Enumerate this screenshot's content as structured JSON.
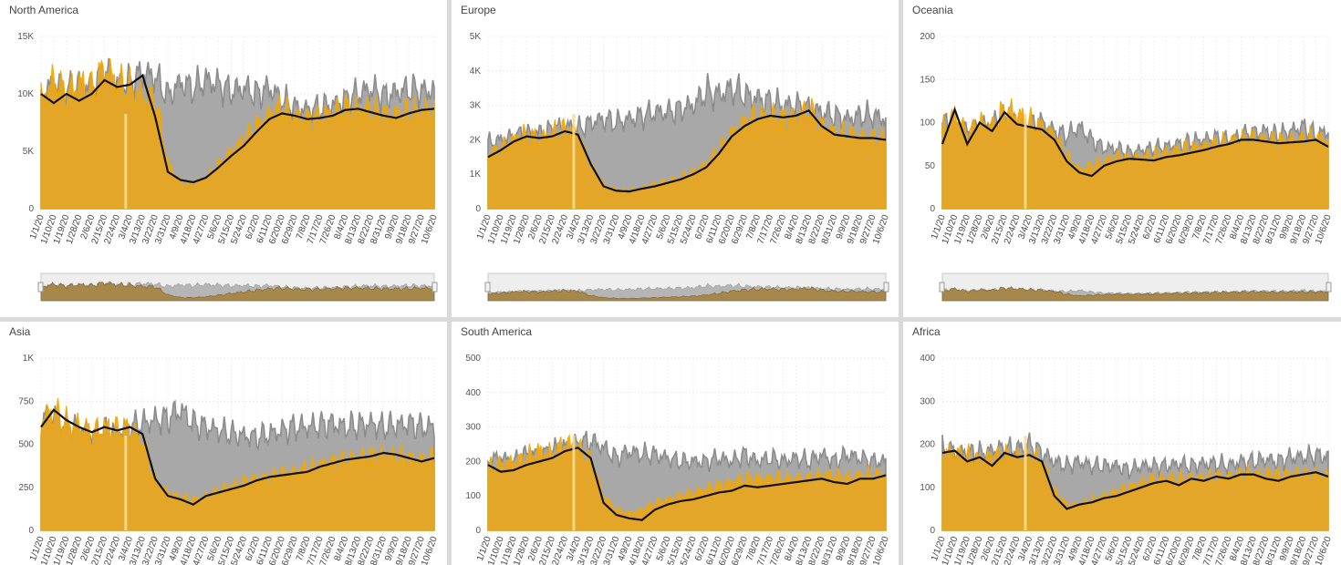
{
  "colors": {
    "this_year": "#e8a623",
    "last_year": "#8c8c8c",
    "rolling_avg": "#111111",
    "marker": "#f6dd8e",
    "background": "#ffffff"
  },
  "x_tick_labels": [
    "1/1/20",
    "1/10/20",
    "1/19/20",
    "1/28/20",
    "2/6/20",
    "2/15/20",
    "2/24/20",
    "3/4/20",
    "3/13/20",
    "3/22/20",
    "3/31/20",
    "4/9/20",
    "4/18/20",
    "4/27/20",
    "5/6/20",
    "5/15/20",
    "5/24/20",
    "6/2/20",
    "6/11/20",
    "6/20/20",
    "6/29/20",
    "7/8/20",
    "7/17/20",
    "7/26/20",
    "8/4/20",
    "8/13/20",
    "8/22/20",
    "8/31/20",
    "9/9/20",
    "9/18/20",
    "9/27/20",
    "10/6/20"
  ],
  "chart_data": [
    {
      "type": "area",
      "title": "North America",
      "y_ticks": [
        "0",
        "5K",
        "10K",
        "15K"
      ],
      "ylim": [
        0,
        15000
      ],
      "has_navigator": true,
      "x_range": [
        "1/1/20",
        "10/11/20"
      ],
      "series": [
        {
          "values": [
            9500,
            11200,
            10000,
            11000,
            10400,
            12300,
            11000,
            10500,
            9800,
            9600,
            4000,
            2200,
            2100,
            2700,
            3800,
            5000,
            6100,
            7200,
            8200,
            8700,
            8000,
            7800,
            8000,
            8300,
            8700,
            8700,
            8500,
            8300,
            8200,
            8400,
            8600,
            8600
          ]
        },
        {
          "values": [
            9600,
            11000,
            10200,
            10800,
            10500,
            12000,
            10800,
            11000,
            11800,
            11500,
            9800,
            11000,
            10500,
            11200,
            10800,
            10200,
            10500,
            10000,
            10500,
            9500,
            8800,
            8600,
            8800,
            9000,
            9500,
            10000,
            10400,
            9800,
            10100,
            10400,
            10200,
            10300
          ]
        },
        {
          "values": [
            10000,
            9200,
            10000,
            9400,
            10000,
            11200,
            10600,
            10800,
            11600,
            8000,
            3200,
            2500,
            2300,
            2700,
            3600,
            4600,
            5500,
            6700,
            7800,
            8300,
            8100,
            7800,
            7900,
            8100,
            8600,
            8700,
            8400,
            8100,
            7900,
            8300,
            8600,
            8700
          ]
        }
      ]
    },
    {
      "type": "area",
      "title": "Europe",
      "y_ticks": [
        "0",
        "1K",
        "2K",
        "3K",
        "4K",
        "5K"
      ],
      "ylim": [
        0,
        5000
      ],
      "has_navigator": true,
      "x_range": [
        "1/1/20",
        "10/11/20"
      ],
      "series": [
        {
          "values": [
            1600,
            1750,
            2000,
            2150,
            2000,
            2200,
            2300,
            2200,
            1200,
            700,
            550,
            520,
            600,
            700,
            800,
            900,
            1050,
            1300,
            1700,
            2200,
            2500,
            2650,
            2700,
            2600,
            2650,
            2900,
            2400,
            2200,
            2150,
            2100,
            2050,
            2000
          ]
        },
        {
          "values": [
            1900,
            2000,
            2100,
            2200,
            2200,
            2300,
            2400,
            2300,
            2500,
            2600,
            2500,
            2600,
            2700,
            2800,
            2800,
            2900,
            3000,
            3400,
            3300,
            3500,
            3300,
            3200,
            3100,
            3000,
            3000,
            2900,
            2800,
            2700,
            2600,
            2700,
            2700,
            2600
          ]
        },
        {
          "values": [
            1500,
            1700,
            1950,
            2100,
            2050,
            2100,
            2250,
            2150,
            1300,
            650,
            520,
            500,
            580,
            650,
            750,
            850,
            1000,
            1200,
            1600,
            2100,
            2400,
            2600,
            2700,
            2650,
            2700,
            2850,
            2400,
            2150,
            2100,
            2050,
            2050,
            2000
          ]
        }
      ]
    },
    {
      "type": "area",
      "title": "Oceania",
      "y_ticks": [
        "0",
        "50",
        "100",
        "150",
        "200"
      ],
      "ylim": [
        0,
        200
      ],
      "has_navigator": true,
      "x_range": [
        "1/1/20",
        "10/11/20"
      ],
      "series": [
        {
          "values": [
            90,
            110,
            85,
            100,
            95,
            115,
            110,
            100,
            95,
            85,
            60,
            45,
            50,
            55,
            60,
            58,
            60,
            62,
            65,
            68,
            70,
            72,
            75,
            78,
            80,
            82,
            80,
            78,
            80,
            80,
            82,
            80
          ]
        },
        {
          "values": [
            100,
            95,
            90,
            95,
            100,
            105,
            100,
            95,
            100,
            90,
            85,
            95,
            80,
            70,
            70,
            65,
            68,
            70,
            72,
            75,
            78,
            80,
            82,
            80,
            85,
            88,
            90,
            85,
            90,
            95,
            85,
            90
          ]
        },
        {
          "values": [
            75,
            115,
            75,
            100,
            90,
            112,
            98,
            95,
            92,
            80,
            55,
            42,
            38,
            50,
            55,
            58,
            57,
            56,
            60,
            62,
            65,
            68,
            72,
            75,
            80,
            80,
            78,
            76,
            77,
            78,
            80,
            72
          ]
        }
      ]
    },
    {
      "type": "area",
      "title": "Asia",
      "y_ticks": [
        "0",
        "250",
        "500",
        "750",
        "1K"
      ],
      "ylim": [
        0,
        1000
      ],
      "has_navigator": false,
      "x_range": [
        "1/1/20",
        "10/11/20"
      ],
      "series": [
        {
          "values": [
            650,
            680,
            620,
            600,
            560,
            600,
            580,
            590,
            520,
            280,
            220,
            190,
            180,
            200,
            230,
            260,
            280,
            300,
            310,
            330,
            340,
            360,
            380,
            400,
            410,
            420,
            430,
            440,
            430,
            420,
            410,
            420
          ]
        },
        {
          "values": [
            640,
            660,
            600,
            590,
            560,
            580,
            570,
            600,
            620,
            640,
            650,
            700,
            620,
            600,
            580,
            560,
            550,
            540,
            560,
            580,
            600,
            600,
            610,
            620,
            600,
            610,
            620,
            600,
            610,
            620,
            600,
            600
          ]
        },
        {
          "values": [
            600,
            700,
            640,
            600,
            570,
            600,
            580,
            600,
            560,
            300,
            200,
            180,
            150,
            200,
            220,
            240,
            260,
            290,
            310,
            320,
            330,
            340,
            370,
            390,
            410,
            420,
            430,
            450,
            440,
            420,
            400,
            420
          ]
        }
      ]
    },
    {
      "type": "area",
      "title": "South America",
      "y_ticks": [
        "0",
        "100",
        "200",
        "300",
        "400",
        "500"
      ],
      "ylim": [
        0,
        500
      ],
      "has_navigator": false,
      "x_range": [
        "1/1/20",
        "10/11/20"
      ],
      "series": [
        {
          "values": [
            180,
            190,
            200,
            210,
            230,
            220,
            250,
            240,
            200,
            100,
            60,
            50,
            60,
            80,
            90,
            100,
            110,
            120,
            130,
            140,
            150,
            150,
            150,
            150,
            150,
            150,
            160,
            160,
            150,
            160,
            160,
            160
          ]
        },
        {
          "values": [
            200,
            210,
            200,
            220,
            220,
            230,
            240,
            250,
            260,
            240,
            210,
            230,
            220,
            220,
            210,
            200,
            200,
            200,
            210,
            200,
            220,
            200,
            210,
            200,
            210,
            200,
            220,
            200,
            220,
            210,
            200,
            200
          ]
        },
        {
          "values": [
            190,
            170,
            175,
            190,
            200,
            210,
            230,
            240,
            210,
            80,
            45,
            35,
            30,
            60,
            75,
            85,
            90,
            100,
            110,
            115,
            130,
            125,
            130,
            135,
            140,
            145,
            150,
            140,
            135,
            150,
            150,
            160
          ]
        }
      ]
    },
    {
      "type": "area",
      "title": "Africa",
      "y_ticks": [
        "0",
        "100",
        "200",
        "300",
        "400"
      ],
      "ylim": [
        0,
        400
      ],
      "has_navigator": false,
      "x_range": [
        "1/1/20",
        "10/11/20"
      ],
      "series": [
        {
          "values": [
            180,
            180,
            170,
            165,
            170,
            175,
            170,
            175,
            160,
            90,
            60,
            60,
            70,
            80,
            90,
            100,
            110,
            120,
            120,
            120,
            120,
            120,
            125,
            125,
            130,
            130,
            130,
            130,
            130,
            130,
            130,
            125
          ]
        },
        {
          "values": [
            190,
            185,
            180,
            180,
            185,
            190,
            190,
            200,
            180,
            160,
            150,
            160,
            150,
            150,
            150,
            140,
            150,
            150,
            150,
            155,
            150,
            155,
            155,
            150,
            160,
            160,
            165,
            160,
            170,
            170,
            175,
            170
          ]
        },
        {
          "values": [
            180,
            185,
            160,
            170,
            150,
            180,
            170,
            175,
            160,
            80,
            50,
            60,
            65,
            75,
            80,
            90,
            100,
            110,
            115,
            105,
            120,
            115,
            125,
            120,
            130,
            130,
            120,
            115,
            125,
            130,
            135,
            125
          ]
        }
      ]
    }
  ]
}
